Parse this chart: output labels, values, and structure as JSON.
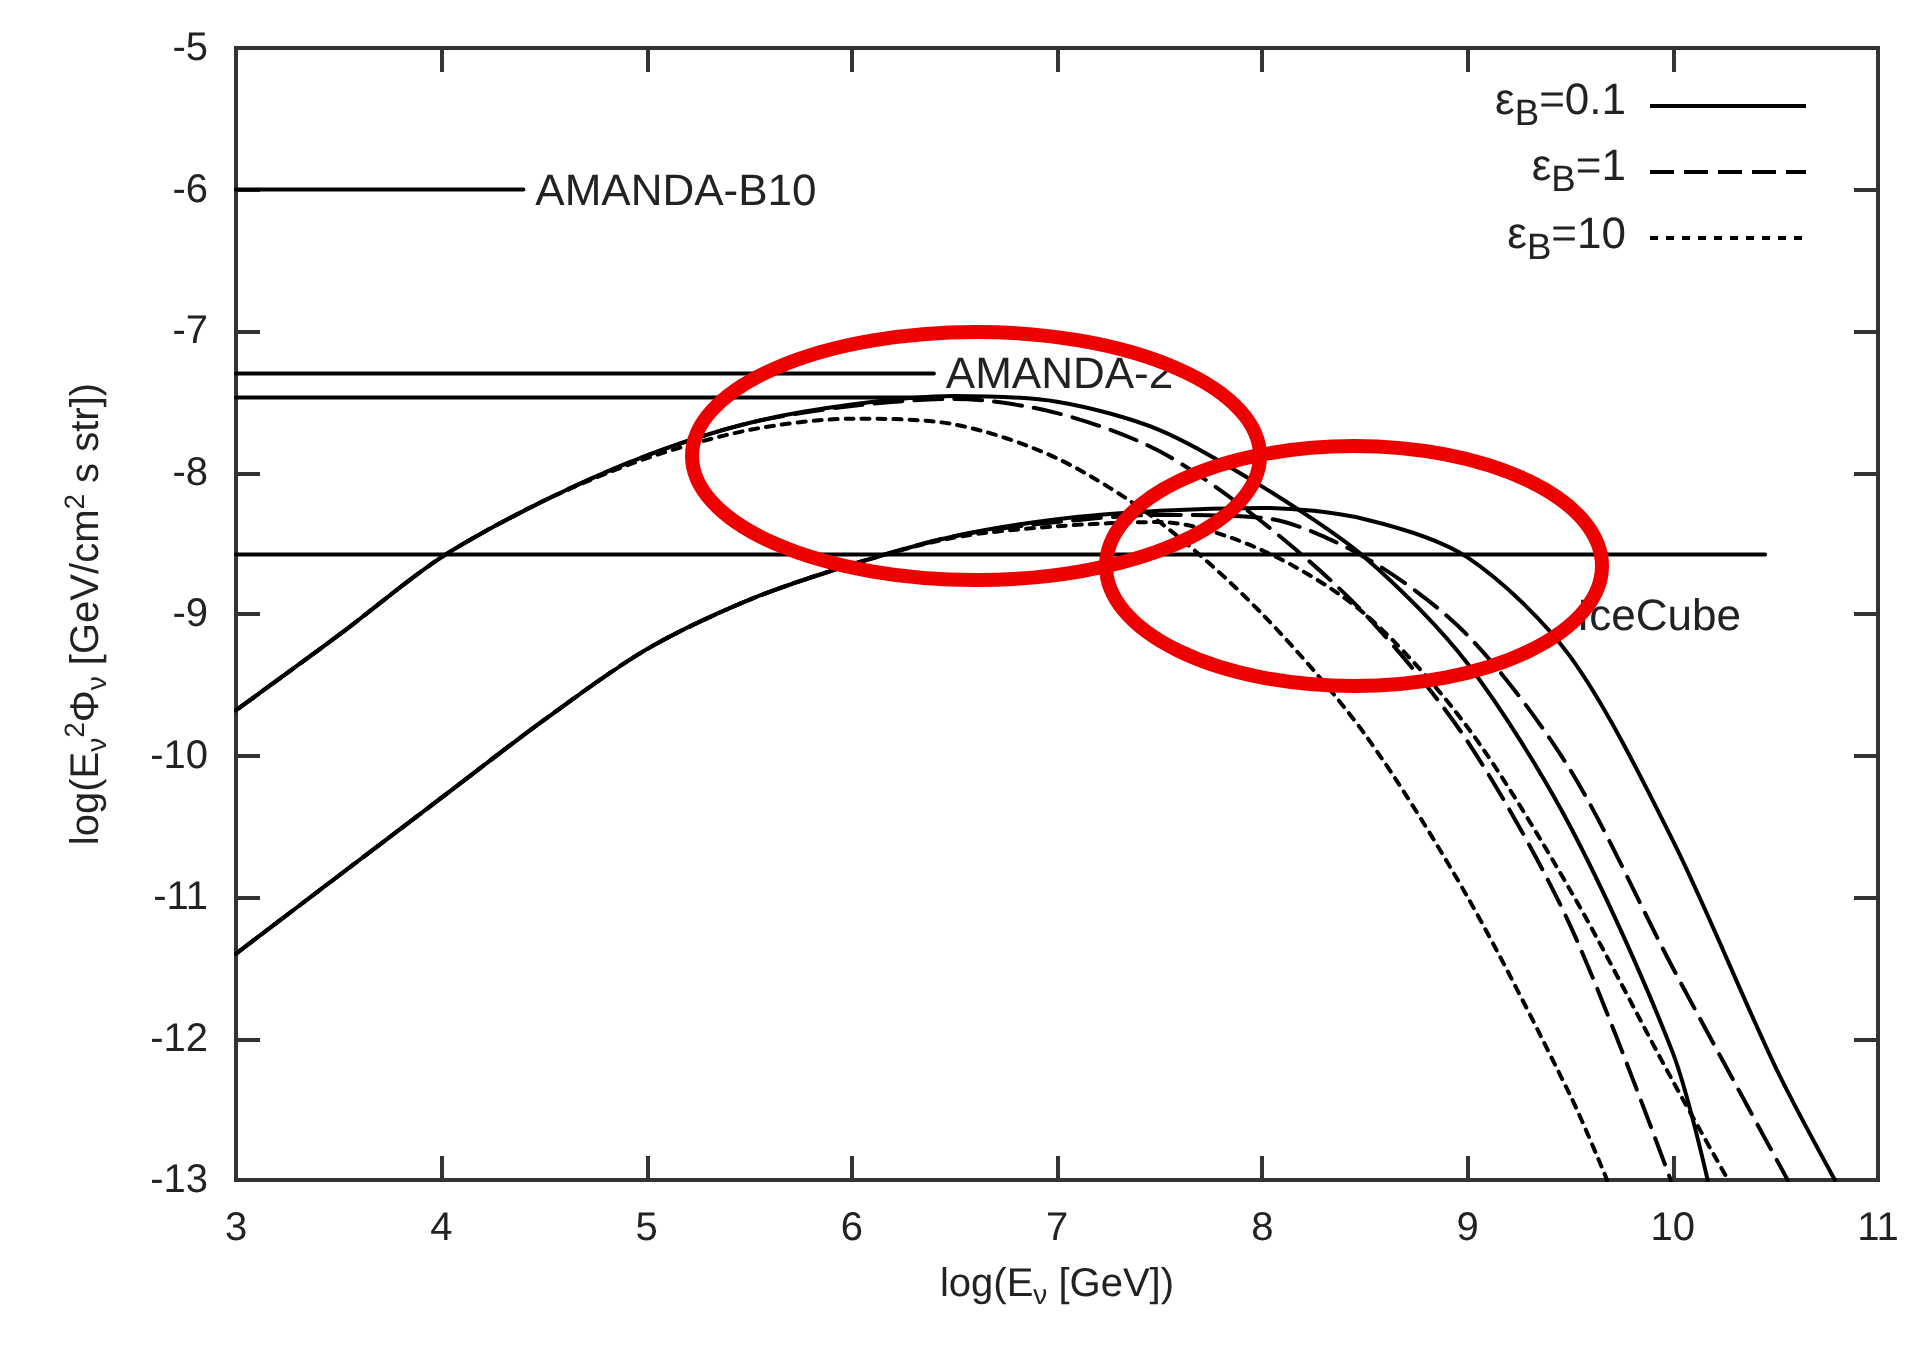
{
  "chart_data": {
    "type": "line",
    "xlabel": "log(E$_{ν}$ [GeV])",
    "ylabel": "log(E$_{ν}$$^{2}$Φ$_{ν}$ [GeV/cm$^{2}$ s str])",
    "xlim": [
      3,
      11
    ],
    "xticks": [
      3,
      4,
      5,
      6,
      7,
      8,
      9,
      10,
      11
    ],
    "ylim": [
      -13,
      -5
    ],
    "yticks": [
      -13,
      -12,
      -11,
      -10,
      -9,
      -8,
      -7,
      -6,
      -5
    ],
    "grid": false,
    "legend": "top right",
    "marker": "none",
    "series": [
      {
        "name": "ε$_{B}$=0.1",
        "color": "#000000",
        "line_style": "solid",
        "x": [
          3,
          3.5,
          4,
          4.5,
          5,
          5.5,
          6,
          6.5,
          7,
          7.5,
          8,
          8.5,
          9,
          9.5,
          10,
          10.17
        ],
        "values": [
          -9.68,
          -9.15,
          -8.6,
          -8.2,
          -7.88,
          -7.65,
          -7.52,
          -7.46,
          -7.5,
          -7.7,
          -8.1,
          -8.6,
          -9.35,
          -10.5,
          -12.1,
          -13
        ]
      },
      {
        "name": "ε$_{B}$=1",
        "color": "#000000",
        "line_style": "dashed",
        "x": [
          3,
          3.5,
          4,
          4.5,
          5,
          5.5,
          6,
          6.5,
          7,
          7.5,
          8,
          8.5,
          9,
          9.5,
          9.99
        ],
        "values": [
          -9.68,
          -9.15,
          -8.6,
          -8.2,
          -7.88,
          -7.65,
          -7.53,
          -7.48,
          -7.58,
          -7.85,
          -8.35,
          -9.0,
          -9.9,
          -11.2,
          -13
        ]
      },
      {
        "name": "ε$_{B}$=10",
        "color": "#000000",
        "line_style": "dotted",
        "x": [
          3,
          3.5,
          4,
          4.5,
          5,
          5.5,
          6,
          6.5,
          7,
          7.5,
          8,
          8.5,
          9,
          9.5,
          9.68
        ],
        "values": [
          -9.68,
          -9.15,
          -8.6,
          -8.2,
          -7.9,
          -7.7,
          -7.62,
          -7.66,
          -7.9,
          -8.35,
          -9.0,
          -9.85,
          -11.0,
          -12.4,
          -13
        ]
      },
      {
        "color": "#000000",
        "line_style": "solid",
        "x": [
          3,
          3.5,
          4,
          4.5,
          5,
          5.5,
          6,
          6.5,
          7,
          7.5,
          8,
          8.5,
          9,
          9.5,
          10,
          10.5,
          10.79
        ],
        "values": [
          -11.4,
          -10.85,
          -10.3,
          -9.75,
          -9.25,
          -8.9,
          -8.65,
          -8.45,
          -8.33,
          -8.27,
          -8.25,
          -8.33,
          -8.6,
          -9.3,
          -10.6,
          -12.2,
          -13
        ]
      },
      {
        "color": "#000000",
        "line_style": "dashed",
        "x": [
          3,
          3.5,
          4,
          4.5,
          5,
          5.5,
          6,
          6.5,
          7,
          7.5,
          8,
          8.5,
          9,
          9.5,
          10,
          10.56
        ],
        "values": [
          -11.4,
          -10.85,
          -10.3,
          -9.75,
          -9.25,
          -8.9,
          -8.65,
          -8.45,
          -8.35,
          -8.3,
          -8.32,
          -8.6,
          -9.15,
          -10.1,
          -11.5,
          -13
        ]
      },
      {
        "color": "#000000",
        "line_style": "dotted",
        "x": [
          3,
          3.5,
          4,
          4.5,
          5,
          5.5,
          6,
          6.5,
          7,
          7.5,
          8,
          8.5,
          9,
          9.5,
          10,
          10.27
        ],
        "values": [
          -11.4,
          -10.85,
          -10.3,
          -9.75,
          -9.25,
          -8.9,
          -8.65,
          -8.46,
          -8.38,
          -8.35,
          -8.55,
          -9.0,
          -9.8,
          -10.95,
          -12.3,
          -13
        ]
      },
      {
        "name": "AMANDA-B10",
        "color": "#000000",
        "line_style": "solid",
        "x": [
          3,
          4.4
        ],
        "values": [
          -6,
          -6
        ]
      },
      {
        "name": "AMANDA-2",
        "color": "#000000",
        "line_style": "solid",
        "x": [
          3,
          6.4
        ],
        "values": [
          -7.3,
          -7.3
        ]
      },
      {
        "color": "#000000",
        "line_style": "solid",
        "x": [
          3,
          6.4
        ],
        "values": [
          -7.47,
          -7.47
        ]
      },
      {
        "name": "IceCube",
        "color": "#000000",
        "line_style": "solid",
        "x": [
          3,
          10.45
        ],
        "values": [
          -8.58,
          -8.58
        ]
      }
    ]
  }
}
